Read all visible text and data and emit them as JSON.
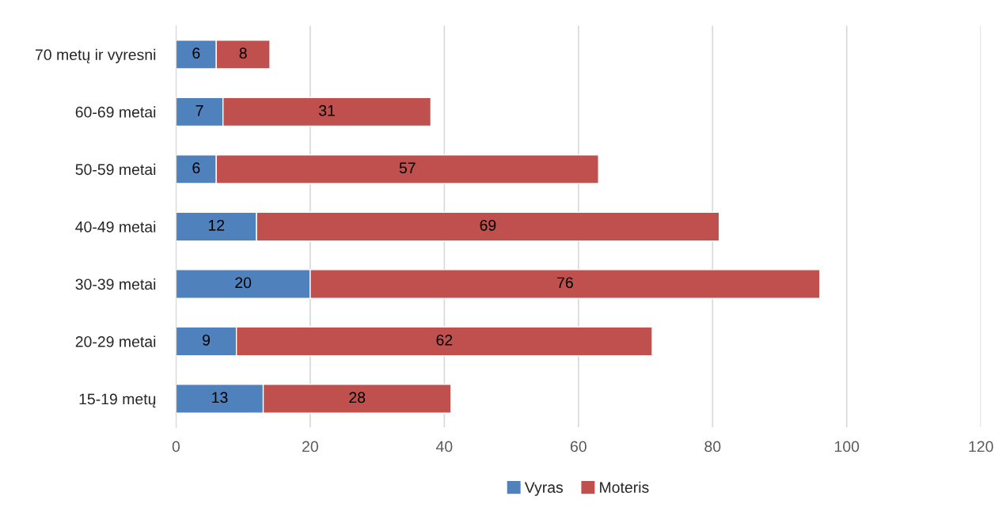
{
  "chart_data": {
    "type": "bar",
    "orientation": "horizontal",
    "stacked": true,
    "categories": [
      "70 metų ir vyresni",
      "60-69 metai",
      "50-59 metai",
      "40-49 metai",
      "30-39 metai",
      "20-29 metai",
      "15-19 metų"
    ],
    "series": [
      {
        "name": "Vyras",
        "color": "#4f81bd",
        "values": [
          6,
          7,
          6,
          12,
          20,
          9,
          13
        ]
      },
      {
        "name": "Moteris",
        "color": "#c0504d",
        "values": [
          8,
          31,
          57,
          69,
          76,
          62,
          28
        ]
      }
    ],
    "xlim": [
      0,
      120
    ],
    "xticks": [
      0,
      20,
      40,
      60,
      80,
      100,
      120
    ],
    "grid": "x",
    "legend": "bottom",
    "data_labels": true
  }
}
